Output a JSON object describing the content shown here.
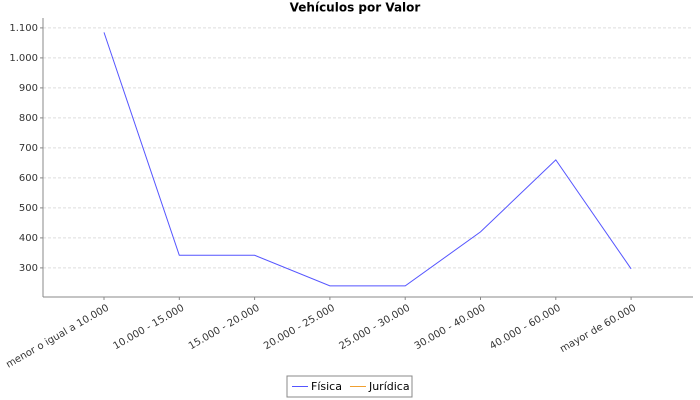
{
  "chart_data": {
    "type": "line",
    "title": "Vehículos por Valor",
    "categories": [
      "menor o igual a 10.000",
      "10.000 - 15.000",
      "15.000 - 20.000",
      "20.000 - 25.000",
      "25.000 - 30.000",
      "30.000 - 40.000",
      "40.000 - 60.000",
      "mayor de 60.000"
    ],
    "series": [
      {
        "name": "Física",
        "color": "#5555ff",
        "values": [
          1085,
          342,
          342,
          240,
          240,
          420,
          660,
          297
        ]
      },
      {
        "name": "Jurídica",
        "color": "#f0a030",
        "values": [
          null,
          null,
          null,
          null,
          null,
          null,
          null,
          null
        ]
      }
    ],
    "ylim": [
      203,
      1133
    ],
    "yticks": [
      300,
      400,
      500,
      600,
      700,
      800,
      900,
      {
        "value": 1000,
        "label": "1.000"
      },
      {
        "value": 1100,
        "label": "1.100"
      }
    ],
    "grid": true
  }
}
